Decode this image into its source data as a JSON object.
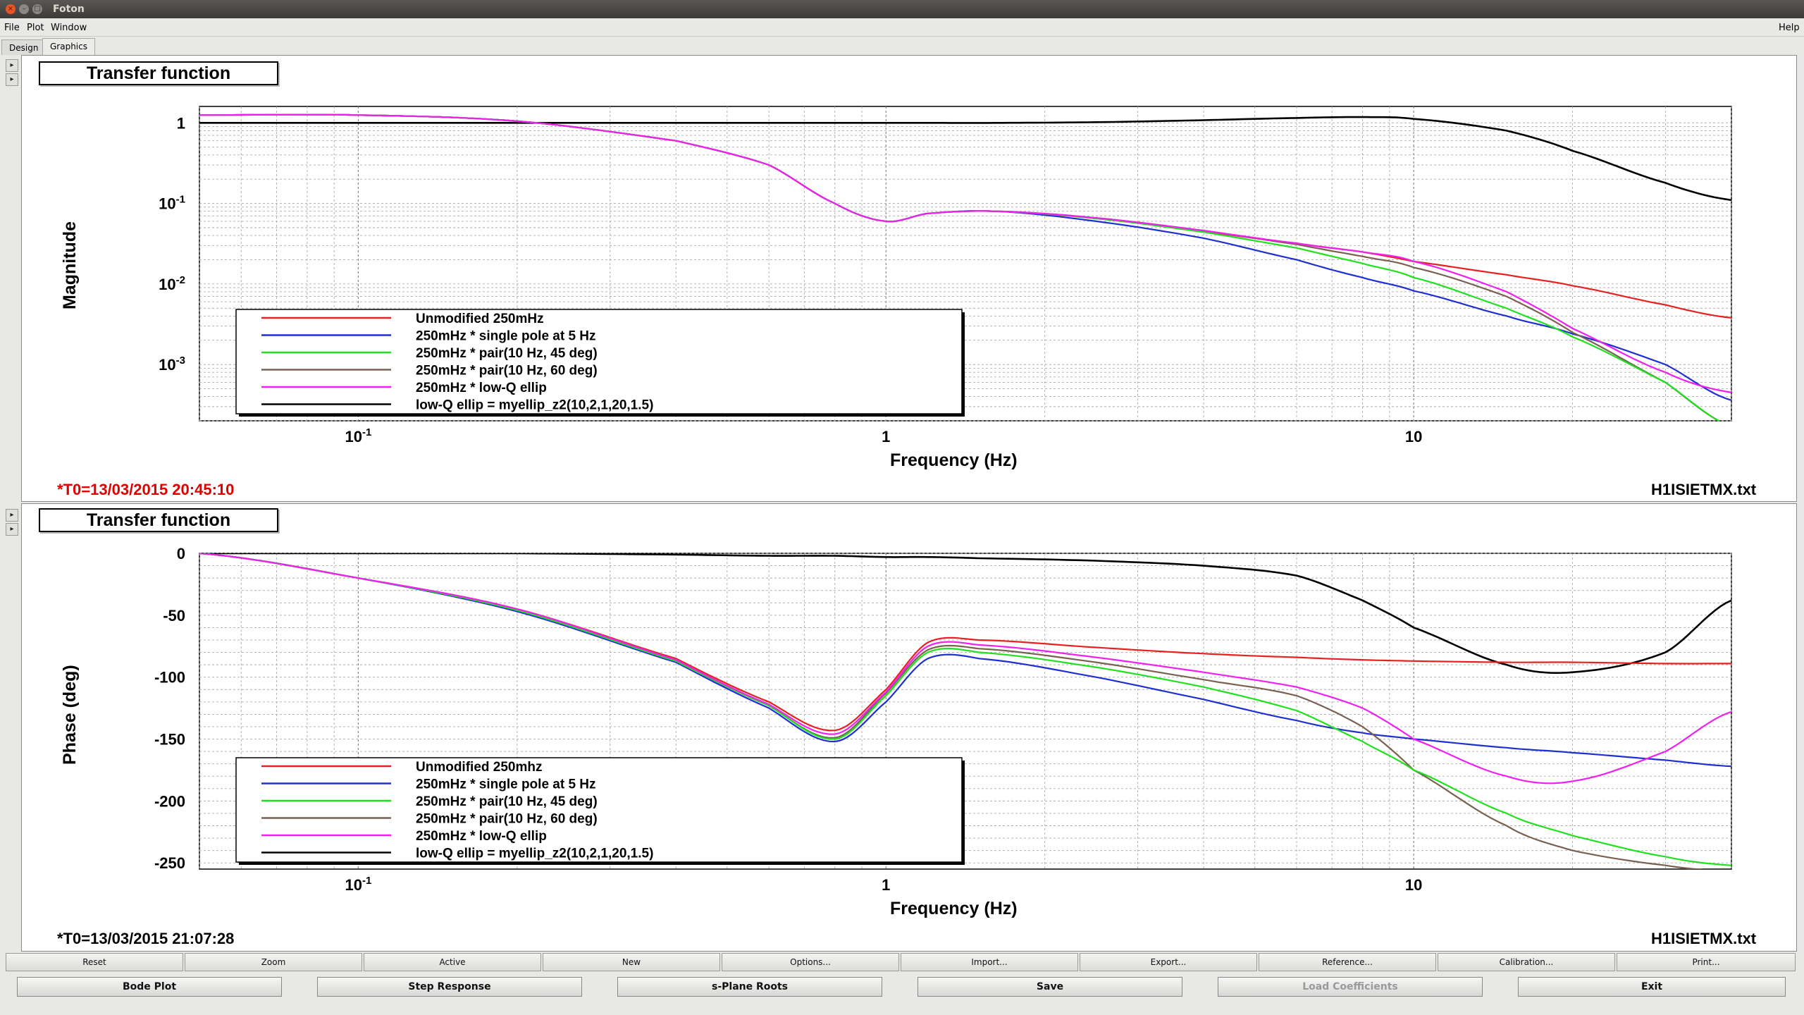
{
  "window": {
    "title": "Foton",
    "close_glyph": "×",
    "min_glyph": "–",
    "max_glyph": "□"
  },
  "menu": {
    "file": "File",
    "plot": "Plot",
    "window": "Window",
    "help": "Help"
  },
  "tabs": [
    "Design",
    "Graphics"
  ],
  "side_controls": {
    "up": "▸",
    "down": "▸"
  },
  "magnitude_panel": {
    "title": "Transfer function",
    "ylabel": "Magnitude",
    "xlabel": "Frequency (Hz)",
    "timestamp": "*T0=13/03/2015 20:45:10",
    "filename": "H1ISIETMX.txt",
    "y_ticks": [
      {
        "base": "1",
        "exp": ""
      },
      {
        "base": "10",
        "exp": "-1"
      },
      {
        "base": "10",
        "exp": "-2"
      },
      {
        "base": "10",
        "exp": "-3"
      }
    ],
    "x_ticks": [
      {
        "base": "10",
        "exp": "-1"
      },
      {
        "base": "1",
        "exp": ""
      },
      {
        "base": "10",
        "exp": ""
      }
    ],
    "legend": [
      {
        "label": "Unmodified 250mHz",
        "color": "#e82020"
      },
      {
        "label": "250mHz * single pole at 5 Hz",
        "color": "#2030d0"
      },
      {
        "label": "250mHz * pair(10 Hz, 45 deg)",
        "color": "#20e020"
      },
      {
        "label": "250mHz * pair(10 Hz, 60 deg)",
        "color": "#7a6050"
      },
      {
        "label": "250mHz * low-Q ellip",
        "color": "#f020f0"
      },
      {
        "label": "low-Q ellip = myellip_z2(10,2,1,20,1.5)",
        "color": "#000000"
      }
    ]
  },
  "phase_panel": {
    "title": "Transfer function",
    "ylabel": "Phase (deg)",
    "xlabel": "Frequency (Hz)",
    "timestamp": "*T0=13/03/2015 21:07:28",
    "filename": "H1ISIETMX.txt",
    "y_ticks": [
      "0",
      "-50",
      "-100",
      "-150",
      "-200",
      "-250"
    ],
    "x_ticks": [
      {
        "base": "10",
        "exp": "-1"
      },
      {
        "base": "1",
        "exp": ""
      },
      {
        "base": "10",
        "exp": ""
      }
    ],
    "legend": [
      {
        "label": "Unmodified 250mhz",
        "color": "#e82020"
      },
      {
        "label": "250mHz * single pole at 5 Hz",
        "color": "#2030d0"
      },
      {
        "label": "250mHz * pair(10 Hz, 45 deg)",
        "color": "#20e020"
      },
      {
        "label": "250mHz * pair(10 Hz, 60 deg)",
        "color": "#7a6050"
      },
      {
        "label": "250mHz * low-Q ellip",
        "color": "#f020f0"
      },
      {
        "label": "low-Q ellip = myellip_z2(10,2,1,20,1.5)",
        "color": "#000000"
      }
    ]
  },
  "toolbar": [
    "Reset",
    "Zoom",
    "Active",
    "New",
    "Options...",
    "Import...",
    "Export...",
    "Reference...",
    "Calibration...",
    "Print..."
  ],
  "actions": {
    "bode": "Bode Plot",
    "step": "Step Response",
    "splane": "s-Plane Roots",
    "save": "Save",
    "load": "Load Coefficients",
    "exit": "Exit"
  },
  "chart_data": [
    {
      "type": "line",
      "title": "Transfer function",
      "xlabel": "Frequency (Hz)",
      "ylabel": "Magnitude",
      "x_scale": "log",
      "y_scale": "log",
      "xlim": [
        0.05,
        40
      ],
      "ylim": [
        0.0002,
        1.6
      ],
      "grid": true,
      "legend_position": "bottom-left",
      "x": [
        0.05,
        0.1,
        0.2,
        0.4,
        0.6,
        0.8,
        1.0,
        1.2,
        1.6,
        2.5,
        4,
        6,
        8,
        10,
        15,
        20,
        30,
        40
      ],
      "series": [
        {
          "name": "Unmodified 250mHz",
          "values": [
            1.25,
            1.25,
            1.05,
            0.6,
            0.3,
            0.1,
            0.06,
            0.075,
            0.08,
            0.065,
            0.045,
            0.032,
            0.025,
            0.019,
            0.013,
            0.0095,
            0.0055,
            0.0038
          ]
        },
        {
          "name": "250mHz * single pole at 5 Hz",
          "values": [
            1.25,
            1.25,
            1.05,
            0.6,
            0.3,
            0.1,
            0.06,
            0.075,
            0.08,
            0.06,
            0.037,
            0.02,
            0.012,
            0.0082,
            0.004,
            0.0024,
            0.001,
            0.00036
          ]
        },
        {
          "name": "250mHz * pair(10 Hz, 45 deg)",
          "values": [
            1.25,
            1.25,
            1.05,
            0.6,
            0.3,
            0.1,
            0.06,
            0.075,
            0.08,
            0.065,
            0.044,
            0.028,
            0.018,
            0.012,
            0.005,
            0.0022,
            0.0006,
            0.00017
          ]
        },
        {
          "name": "250mHz * pair(10 Hz, 60 deg)",
          "values": [
            1.25,
            1.25,
            1.05,
            0.6,
            0.3,
            0.1,
            0.06,
            0.075,
            0.08,
            0.066,
            0.046,
            0.031,
            0.022,
            0.016,
            0.007,
            0.0025,
            0.0006,
            0.00017
          ]
        },
        {
          "name": "250mHz * low-Q ellip",
          "values": [
            1.25,
            1.25,
            1.05,
            0.6,
            0.3,
            0.1,
            0.06,
            0.075,
            0.08,
            0.066,
            0.046,
            0.032,
            0.025,
            0.019,
            0.008,
            0.0028,
            0.0008,
            0.00045
          ]
        },
        {
          "name": "low-Q ellip = myellip_z2(10,2,1,20,1.5)",
          "values": [
            1.0,
            1.0,
            1.0,
            1.0,
            1.0,
            1.0,
            1.0,
            1.0,
            1.0,
            1.02,
            1.08,
            1.15,
            1.18,
            1.12,
            0.8,
            0.45,
            0.18,
            0.11
          ]
        }
      ]
    },
    {
      "type": "line",
      "title": "Transfer function",
      "xlabel": "Frequency (Hz)",
      "ylabel": "Phase (deg)",
      "x_scale": "log",
      "xlim": [
        0.05,
        40
      ],
      "ylim": [
        -255,
        0
      ],
      "grid": true,
      "legend_position": "bottom-left",
      "x": [
        0.05,
        0.1,
        0.2,
        0.4,
        0.6,
        0.8,
        1.0,
        1.2,
        1.5,
        2.5,
        4,
        6,
        8,
        10,
        15,
        20,
        30,
        40
      ],
      "series": [
        {
          "name": "Unmodified 250mhz",
          "values": [
            0,
            -20,
            -45,
            -85,
            -120,
            -143,
            -110,
            -72,
            -70,
            -76,
            -81,
            -84,
            -86,
            -87,
            -88,
            -88,
            -89,
            -89
          ]
        },
        {
          "name": "250mHz * single pole at 5 Hz",
          "values": [
            0,
            -20,
            -47,
            -88,
            -125,
            -152,
            -120,
            -85,
            -85,
            -100,
            -118,
            -135,
            -145,
            -150,
            -157,
            -161,
            -167,
            -172
          ]
        },
        {
          "name": "250mHz * pair(10 Hz, 45 deg)",
          "values": [
            0,
            -20,
            -46,
            -87,
            -123,
            -150,
            -115,
            -80,
            -80,
            -92,
            -108,
            -127,
            -152,
            -175,
            -210,
            -228,
            -245,
            -252
          ]
        },
        {
          "name": "250mHz * pair(10 Hz, 60 deg)",
          "values": [
            0,
            -20,
            -46,
            -87,
            -123,
            -149,
            -113,
            -78,
            -77,
            -88,
            -102,
            -115,
            -140,
            -175,
            -220,
            -240,
            -252,
            -257
          ]
        },
        {
          "name": "250mHz * low-Q ellip",
          "values": [
            0,
            -20,
            -45,
            -86,
            -122,
            -146,
            -112,
            -75,
            -74,
            -84,
            -96,
            -108,
            -125,
            -150,
            -180,
            -184,
            -160,
            -128
          ]
        },
        {
          "name": "low-Q ellip = myellip_z2(10,2,1,20,1.5)",
          "values": [
            0,
            0,
            0,
            -1,
            -2,
            -2,
            -3,
            -3,
            -4,
            -6,
            -10,
            -18,
            -38,
            -60,
            -90,
            -96,
            -80,
            -38
          ]
        }
      ]
    }
  ]
}
